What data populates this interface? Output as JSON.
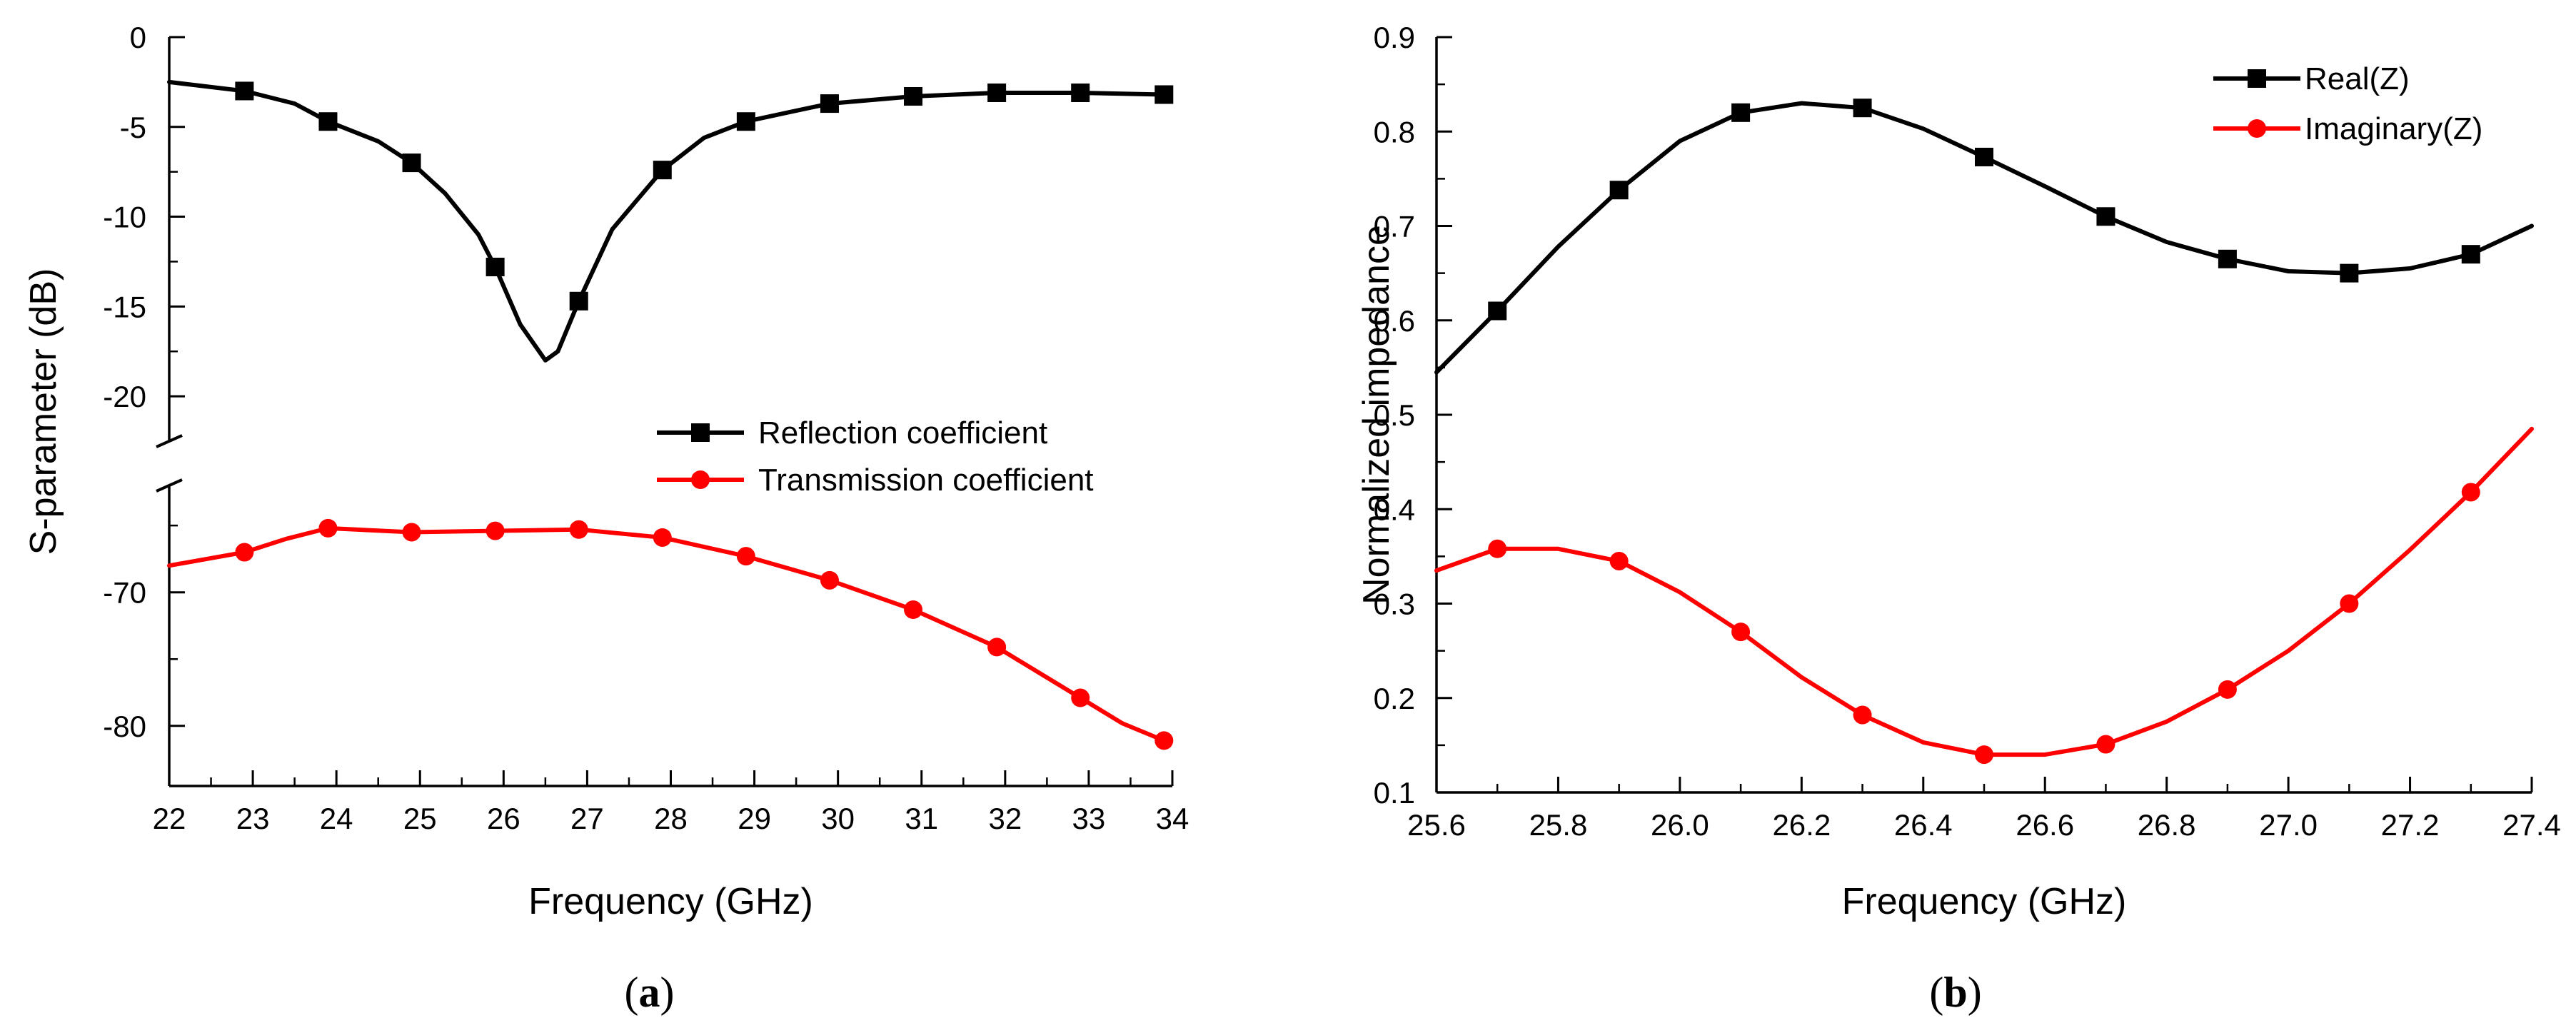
{
  "chart_data": [
    {
      "type": "line",
      "panel_label": "a",
      "xlabel": "Frequency (GHz)",
      "ylabel": "S-parameter (dB)",
      "xlim": [
        22,
        34
      ],
      "x_ticks": [
        22,
        23,
        24,
        25,
        26,
        27,
        28,
        29,
        30,
        31,
        32,
        33,
        34
      ],
      "axis_break": true,
      "upper_ylim": [
        -22.5,
        0
      ],
      "upper_y_ticks": [
        0,
        -5,
        -10,
        -15,
        -20
      ],
      "lower_ylim": [
        -84.5,
        -62
      ],
      "lower_y_ticks": [
        -70,
        -80
      ],
      "legend_position": "center-right",
      "series": [
        {
          "name": "Reflection coefficient",
          "color": "#000000",
          "marker": "square",
          "segment": "upper",
          "curve": [
            [
              22.0,
              -2.5
            ],
            [
              22.9,
              -3.0
            ],
            [
              23.5,
              -3.7
            ],
            [
              23.9,
              -4.7
            ],
            [
              24.5,
              -5.8
            ],
            [
              24.9,
              -7.0
            ],
            [
              25.3,
              -8.7
            ],
            [
              25.7,
              -11.0
            ],
            [
              25.9,
              -12.8
            ],
            [
              26.2,
              -16.0
            ],
            [
              26.5,
              -18.0
            ],
            [
              26.65,
              -17.5
            ],
            [
              26.9,
              -14.7
            ],
            [
              27.3,
              -10.7
            ],
            [
              27.9,
              -7.4
            ],
            [
              28.4,
              -5.6
            ],
            [
              28.9,
              -4.7
            ],
            [
              29.5,
              -4.1
            ],
            [
              29.9,
              -3.7
            ],
            [
              30.9,
              -3.3
            ],
            [
              31.9,
              -3.1
            ],
            [
              32.9,
              -3.1
            ],
            [
              33.9,
              -3.2
            ]
          ],
          "marker_x": [
            22.9,
            23.9,
            24.9,
            25.9,
            26.9,
            27.9,
            28.9,
            29.9,
            30.9,
            31.9,
            32.9,
            33.9
          ],
          "marker_y": [
            -3.0,
            -4.7,
            -7.0,
            -12.8,
            -14.7,
            -7.4,
            -4.7,
            -3.7,
            -3.3,
            -3.1,
            -3.1,
            -3.2
          ]
        },
        {
          "name": "Transmission coefficient",
          "color": "#ff0000",
          "marker": "circle",
          "segment": "lower",
          "curve": [
            [
              22.0,
              -68.0
            ],
            [
              22.9,
              -67.0
            ],
            [
              23.4,
              -66.0
            ],
            [
              23.9,
              -65.2
            ],
            [
              24.9,
              -65.5
            ],
            [
              25.9,
              -65.4
            ],
            [
              26.9,
              -65.3
            ],
            [
              27.9,
              -65.9
            ],
            [
              28.9,
              -67.3
            ],
            [
              29.9,
              -69.1
            ],
            [
              30.9,
              -71.3
            ],
            [
              31.9,
              -74.1
            ],
            [
              32.9,
              -77.9
            ],
            [
              33.4,
              -79.8
            ],
            [
              33.9,
              -81.1
            ]
          ],
          "marker_x": [
            22.9,
            23.9,
            24.9,
            25.9,
            26.9,
            27.9,
            28.9,
            29.9,
            30.9,
            31.9,
            32.9,
            33.9
          ],
          "marker_y": [
            -67.0,
            -65.2,
            -65.5,
            -65.4,
            -65.3,
            -65.9,
            -67.3,
            -69.1,
            -71.3,
            -74.1,
            -77.9,
            -81.1
          ]
        }
      ]
    },
    {
      "type": "line",
      "panel_label": "b",
      "xlabel": "Frequency (GHz)",
      "ylabel": "Normalized impedance",
      "xlim": [
        25.6,
        27.4
      ],
      "ylim": [
        0.1,
        0.9
      ],
      "x_ticks": [
        "25.6",
        "25.8",
        "26.0",
        "26.2",
        "26.4",
        "26.6",
        "26.8",
        "27.0",
        "27.2",
        "27.4"
      ],
      "y_ticks": [
        "0.1",
        "0.2",
        "0.3",
        "0.4",
        "0.5",
        "0.6",
        "0.7",
        "0.8",
        "0.9"
      ],
      "legend_position": "top-right",
      "series": [
        {
          "name": "Real(Z)",
          "color": "#000000",
          "marker": "square",
          "curve": [
            [
              25.6,
              0.545
            ],
            [
              25.7,
              0.61
            ],
            [
              25.8,
              0.678
            ],
            [
              25.9,
              0.738
            ],
            [
              26.0,
              0.79
            ],
            [
              26.1,
              0.82
            ],
            [
              26.2,
              0.83
            ],
            [
              26.3,
              0.825
            ],
            [
              26.4,
              0.803
            ],
            [
              26.5,
              0.773
            ],
            [
              26.6,
              0.742
            ],
            [
              26.7,
              0.71
            ],
            [
              26.8,
              0.683
            ],
            [
              26.9,
              0.665
            ],
            [
              27.0,
              0.652
            ],
            [
              27.1,
              0.65
            ],
            [
              27.2,
              0.655
            ],
            [
              27.3,
              0.67
            ],
            [
              27.4,
              0.7
            ]
          ],
          "marker_x": [
            25.7,
            25.9,
            26.1,
            26.3,
            26.5,
            26.7,
            26.9,
            27.1,
            27.3
          ],
          "marker_y": [
            0.61,
            0.738,
            0.82,
            0.825,
            0.773,
            0.71,
            0.665,
            0.65,
            0.67
          ]
        },
        {
          "name": "Imaginary(Z)",
          "color": "#ff0000",
          "marker": "circle",
          "curve": [
            [
              25.6,
              0.335
            ],
            [
              25.7,
              0.358
            ],
            [
              25.8,
              0.358
            ],
            [
              25.9,
              0.345
            ],
            [
              26.0,
              0.312
            ],
            [
              26.1,
              0.27
            ],
            [
              26.2,
              0.222
            ],
            [
              26.3,
              0.182
            ],
            [
              26.4,
              0.153
            ],
            [
              26.5,
              0.14
            ],
            [
              26.6,
              0.14
            ],
            [
              26.7,
              0.151
            ],
            [
              26.8,
              0.175
            ],
            [
              26.9,
              0.209
            ],
            [
              27.0,
              0.25
            ],
            [
              27.1,
              0.3
            ],
            [
              27.2,
              0.357
            ],
            [
              27.3,
              0.418
            ],
            [
              27.4,
              0.485
            ]
          ],
          "marker_x": [
            25.7,
            25.9,
            26.1,
            26.3,
            26.5,
            26.7,
            26.9,
            27.1,
            27.3
          ],
          "marker_y": [
            0.358,
            0.345,
            0.27,
            0.182,
            0.14,
            0.151,
            0.209,
            0.3,
            0.418
          ]
        }
      ]
    }
  ]
}
